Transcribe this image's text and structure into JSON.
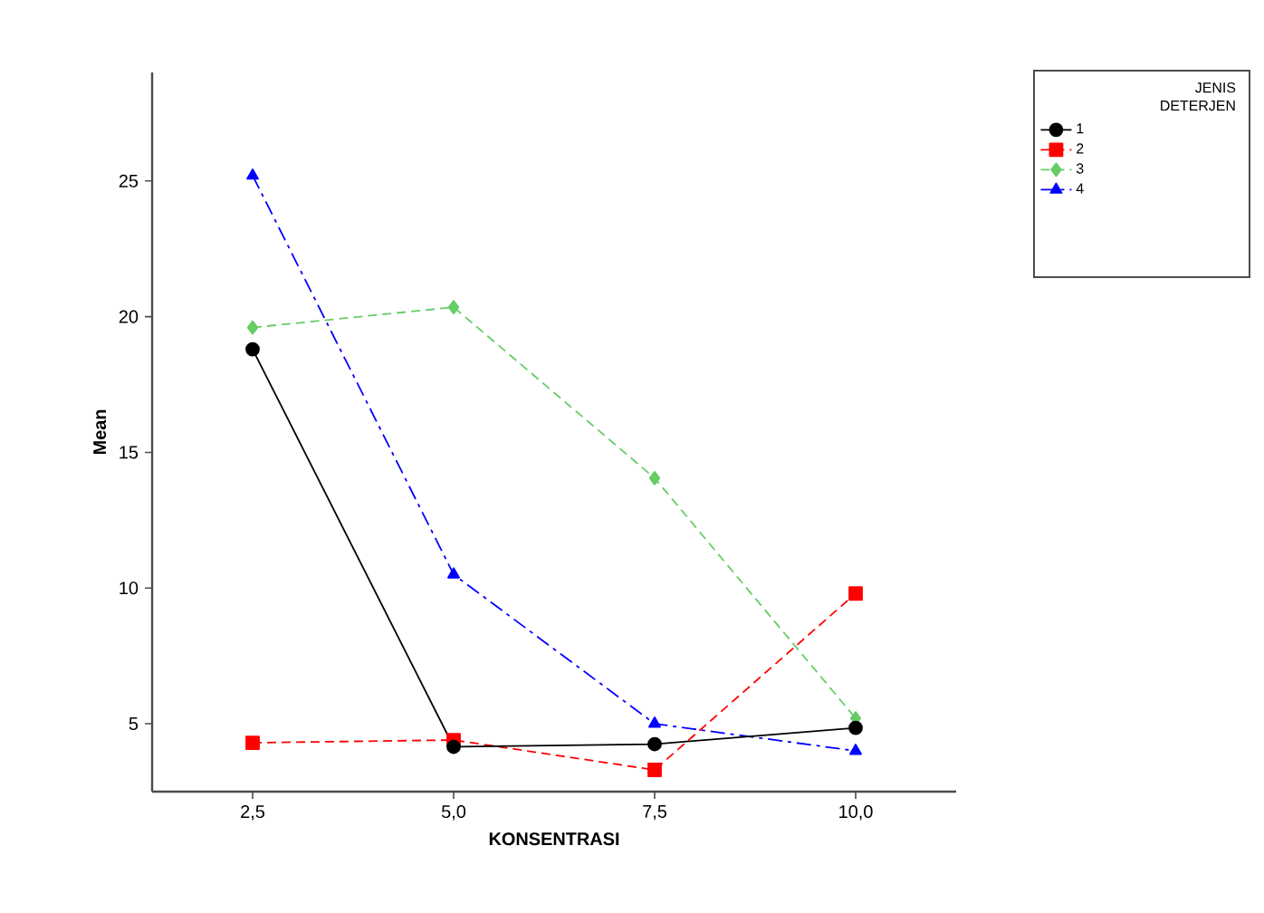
{
  "chart_data": {
    "type": "line",
    "xlabel": "KONSENTRASI",
    "ylabel": "Mean",
    "legend_title": "JENIS DETERJEN",
    "categories": [
      "2,5",
      "5,0",
      "7,5",
      "10,0"
    ],
    "ylim": [
      2.5,
      29
    ],
    "yticks": [
      5,
      10,
      15,
      20,
      25
    ],
    "grid": false,
    "legend": "top right",
    "series": [
      {
        "name": "1",
        "color": "#000000",
        "marker": "circle",
        "line_style": "solid",
        "values": [
          18.8,
          4.15,
          4.25,
          4.85
        ]
      },
      {
        "name": "2",
        "color": "#ff0000",
        "marker": "square",
        "line_style": "dashed",
        "values": [
          4.3,
          4.4,
          3.3,
          9.8
        ]
      },
      {
        "name": "3",
        "color": "#66cc66",
        "marker": "diamond",
        "line_style": "dashed",
        "values": [
          19.6,
          20.35,
          14.05,
          5.2
        ]
      },
      {
        "name": "4",
        "color": "#0000ff",
        "marker": "triangle",
        "line_style": "dashdot",
        "values": [
          25.2,
          10.5,
          5.0,
          4.0
        ]
      }
    ]
  }
}
